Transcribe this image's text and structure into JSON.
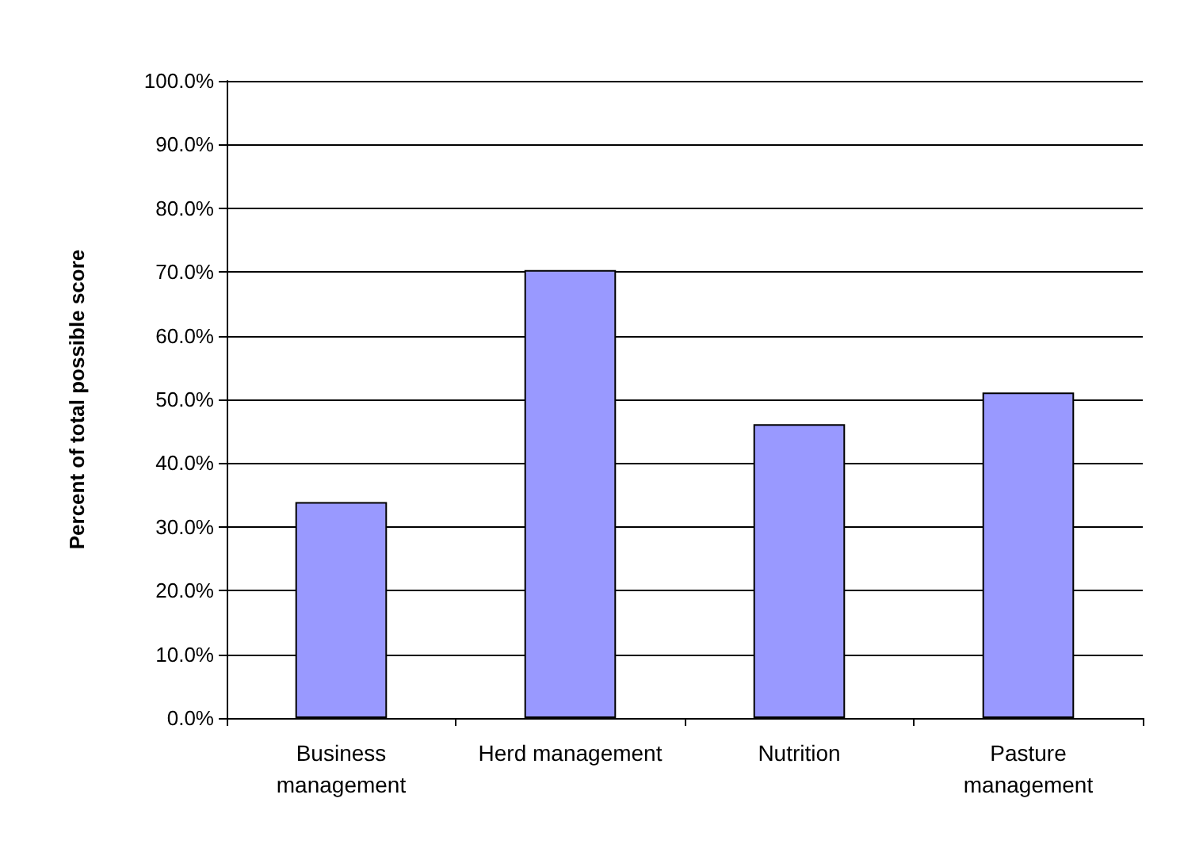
{
  "chart_data": {
    "type": "bar",
    "ylabel": "Percent of total possible score",
    "categories": [
      "Business\nmanagement",
      "Herd management",
      "Nutrition",
      "Pasture\nmanagement"
    ],
    "values": [
      33.9,
      70.3,
      46.1,
      51.1
    ],
    "color": "#9999ff",
    "ylim": [
      0,
      100
    ],
    "yticks": [
      {
        "value": 0,
        "label": "0.0%"
      },
      {
        "value": 10,
        "label": "10.0%"
      },
      {
        "value": 20,
        "label": "20.0%"
      },
      {
        "value": 30,
        "label": "30.0%"
      },
      {
        "value": 40,
        "label": "40.0%"
      },
      {
        "value": 50,
        "label": "50.0%"
      },
      {
        "value": 60,
        "label": "60.0%"
      },
      {
        "value": 70,
        "label": "70.0%"
      },
      {
        "value": 80,
        "label": "80.0%"
      },
      {
        "value": 90,
        "label": "90.0%"
      },
      {
        "value": 100,
        "label": "100.0%"
      }
    ],
    "grid": "y"
  }
}
